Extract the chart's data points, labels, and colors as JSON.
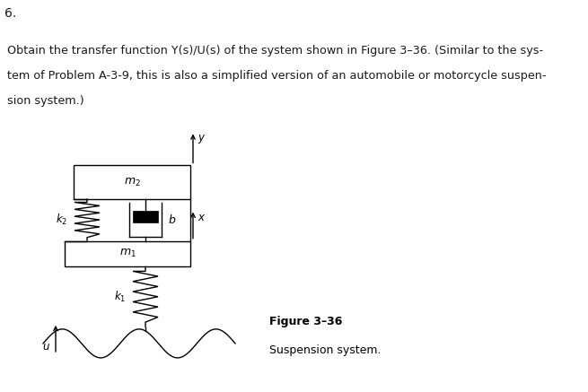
{
  "title_number": "6.",
  "line1": "Obtain the transfer function Y(s)/U(s) of the system shown in Figure 3–36. (Similar to the sys-",
  "line2": "tem of Problem A-3-9, this is also a simplified version of an automobile or motorcycle suspen-",
  "line3": "sion system.)",
  "fig_caption_bold": "Figure 3–36",
  "fig_caption_normal": "Suspension system.",
  "label_m2": "$m_2$",
  "label_m1": "$m_1$",
  "label_b": "$b$",
  "label_k1": "$k_1$",
  "label_k2": "$k_2$",
  "label_y": "$y$",
  "label_x": "$x$",
  "label_u": "$u$",
  "bg_color": "#e8e8e8",
  "text_color": "#1a1a1a",
  "diagram_color": "#000000",
  "fig_width": 6.55,
  "fig_height": 4.37,
  "dpi": 100
}
